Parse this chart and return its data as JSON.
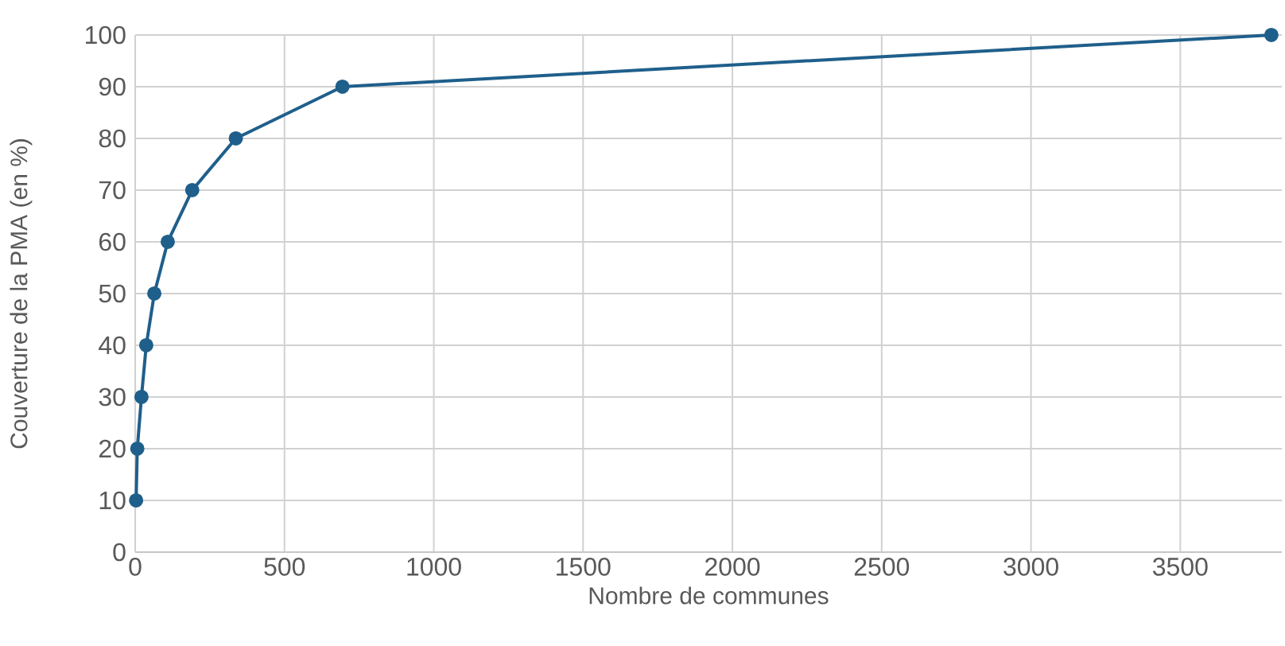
{
  "chart_data": {
    "type": "line",
    "xlabel": "Nombre de communes",
    "ylabel": "Couverture de la PMA (en %)",
    "x": [
      3,
      7,
      21,
      37,
      64,
      109,
      191,
      337,
      694,
      3805
    ],
    "values": [
      10,
      20,
      30,
      40,
      50,
      60,
      70,
      80,
      90,
      100
    ],
    "color": "#1f5f8b",
    "marker": "circle",
    "grid": true,
    "xlim": [
      0,
      3840
    ],
    "xticks": [
      0,
      500,
      1000,
      1500,
      2000,
      2500,
      3000,
      3500
    ],
    "ylim": [
      0,
      100
    ],
    "yticks": [
      0,
      10,
      20,
      30,
      40,
      50,
      60,
      70,
      80,
      90,
      100
    ]
  }
}
